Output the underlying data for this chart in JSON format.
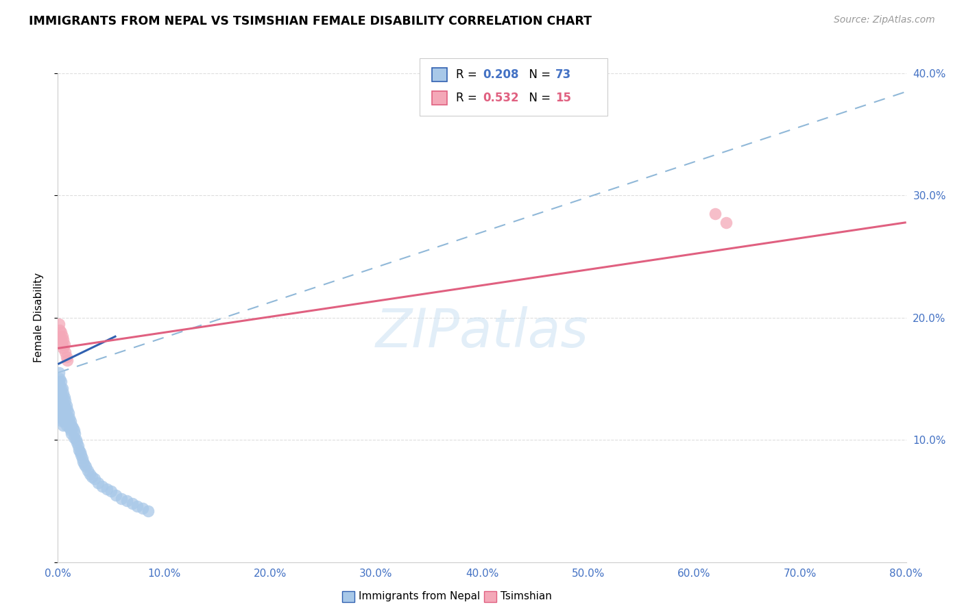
{
  "title": "IMMIGRANTS FROM NEPAL VS TSIMSHIAN FEMALE DISABILITY CORRELATION CHART",
  "source": "Source: ZipAtlas.com",
  "ylabel": "Female Disability",
  "watermark": "ZIPatlas",
  "legend_label1": "Immigrants from Nepal",
  "legend_label2": "Tsimshian",
  "xlim": [
    0.0,
    0.8
  ],
  "ylim": [
    0.0,
    0.4
  ],
  "xticks": [
    0.0,
    0.1,
    0.2,
    0.3,
    0.4,
    0.5,
    0.6,
    0.7,
    0.8
  ],
  "yticks": [
    0.0,
    0.1,
    0.2,
    0.3,
    0.4
  ],
  "xtick_labels": [
    "0.0%",
    "10.0%",
    "20.0%",
    "30.0%",
    "40.0%",
    "50.0%",
    "60.0%",
    "70.0%",
    "80.0%"
  ],
  "ytick_labels_right": [
    "",
    "10.0%",
    "20.0%",
    "30.0%",
    "40.0%"
  ],
  "nepal_color": "#a8c8e8",
  "tsimshian_color": "#f4a8b8",
  "nepal_line_color": "#3060b0",
  "tsimshian_line_color": "#e06080",
  "dashed_line_color": "#90b8d8",
  "axis_tick_color": "#4472c4",
  "background_color": "#ffffff",
  "nepal_x": [
    0.001,
    0.001,
    0.001,
    0.002,
    0.002,
    0.002,
    0.002,
    0.002,
    0.003,
    0.003,
    0.003,
    0.003,
    0.003,
    0.003,
    0.004,
    0.004,
    0.004,
    0.004,
    0.004,
    0.005,
    0.005,
    0.005,
    0.005,
    0.005,
    0.006,
    0.006,
    0.006,
    0.006,
    0.007,
    0.007,
    0.007,
    0.008,
    0.008,
    0.008,
    0.009,
    0.009,
    0.01,
    0.01,
    0.011,
    0.011,
    0.012,
    0.012,
    0.013,
    0.013,
    0.014,
    0.015,
    0.015,
    0.016,
    0.017,
    0.018,
    0.019,
    0.02,
    0.021,
    0.022,
    0.023,
    0.024,
    0.025,
    0.026,
    0.028,
    0.03,
    0.032,
    0.035,
    0.038,
    0.042,
    0.046,
    0.05,
    0.055,
    0.06,
    0.065,
    0.07,
    0.075,
    0.08,
    0.085
  ],
  "nepal_y": [
    0.155,
    0.148,
    0.14,
    0.15,
    0.145,
    0.138,
    0.132,
    0.125,
    0.148,
    0.142,
    0.138,
    0.132,
    0.125,
    0.118,
    0.142,
    0.135,
    0.128,
    0.122,
    0.115,
    0.138,
    0.13,
    0.123,
    0.118,
    0.112,
    0.135,
    0.128,
    0.122,
    0.115,
    0.132,
    0.125,
    0.118,
    0.128,
    0.12,
    0.112,
    0.125,
    0.118,
    0.122,
    0.115,
    0.118,
    0.11,
    0.115,
    0.108,
    0.112,
    0.105,
    0.11,
    0.108,
    0.102,
    0.105,
    0.1,
    0.098,
    0.095,
    0.092,
    0.09,
    0.088,
    0.085,
    0.082,
    0.08,
    0.078,
    0.075,
    0.072,
    0.07,
    0.068,
    0.065,
    0.062,
    0.06,
    0.058,
    0.055,
    0.052,
    0.05,
    0.048,
    0.046,
    0.044,
    0.042
  ],
  "tsimshian_x": [
    0.001,
    0.002,
    0.002,
    0.003,
    0.003,
    0.004,
    0.004,
    0.005,
    0.005,
    0.006,
    0.007,
    0.008,
    0.009,
    0.62,
    0.63
  ],
  "tsimshian_y": [
    0.195,
    0.19,
    0.185,
    0.188,
    0.182,
    0.185,
    0.178,
    0.182,
    0.175,
    0.178,
    0.172,
    0.168,
    0.165,
    0.285,
    0.278
  ],
  "nepal_trend_x": [
    0.0,
    0.055
  ],
  "nepal_trend_y": [
    0.162,
    0.185
  ],
  "tsimshian_trend_x": [
    0.0,
    0.8
  ],
  "tsimshian_trend_y": [
    0.175,
    0.278
  ],
  "dashed_trend_x": [
    0.0,
    0.8
  ],
  "dashed_trend_y": [
    0.155,
    0.385
  ],
  "nepal_r": "0.208",
  "nepal_n": "73",
  "tsimshian_r": "0.532",
  "tsimshian_n": "15"
}
